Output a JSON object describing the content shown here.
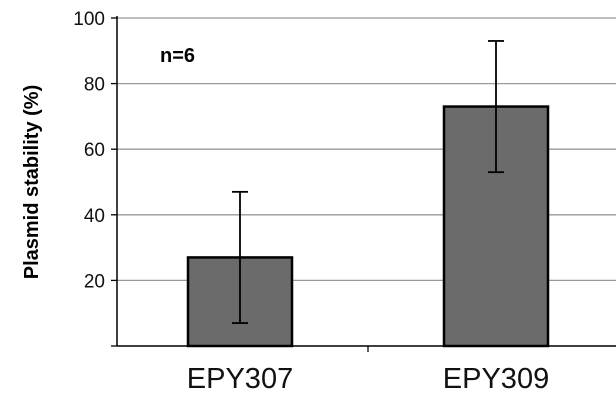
{
  "chart_data": {
    "type": "bar",
    "title": "",
    "xlabel": "",
    "ylabel": "Plasmid stability (%)",
    "annotation": "n=6",
    "categories": [
      "EPY307",
      "EPY309"
    ],
    "series": [
      {
        "values": [
          27,
          73
        ],
        "error": [
          20,
          20
        ]
      }
    ],
    "ylim": [
      0,
      100
    ],
    "yticks": [
      20,
      40,
      60,
      80,
      100
    ],
    "grid": true,
    "legend": "none",
    "bar_color": "#6b6b6b",
    "bar_edge_color": "#000000",
    "grid_color": "#999999"
  }
}
